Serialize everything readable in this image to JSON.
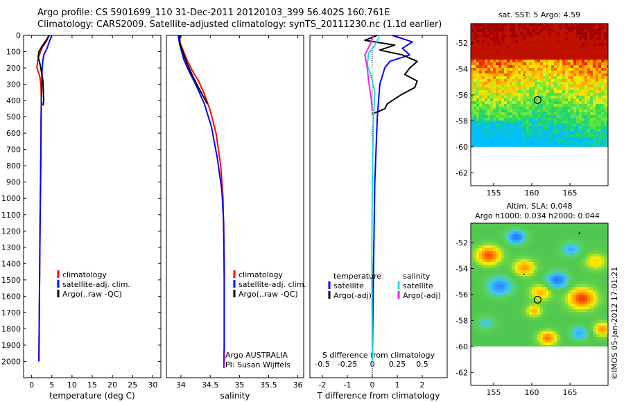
{
  "header": {
    "line1": "Argo profile: CS 5901699_110 31-Dec-2011 20120103_399 56.402S 160.761E",
    "line2": "Climatology: CARS2009. Satellite-adjusted climatology: synTS_20111230.nc (1.1d earlier)"
  },
  "credit": "©IMOS 05-Jan-2012 17:01:21",
  "colors": {
    "climatology": "#ff0000",
    "satellite": "#0000ff",
    "argo": "#000000",
    "salinity_satellite": "#22dddd",
    "salinity_argo": "#ee22ee"
  },
  "chart_data": [
    {
      "type": "line",
      "id": "temperature",
      "xlabel": "temperature (deg C)",
      "ylabel": "",
      "xlim": [
        -2,
        32
      ],
      "ylim": [
        2100,
        0
      ],
      "xticks": [
        0,
        5,
        10,
        15,
        20,
        25,
        30
      ],
      "yticks": [
        0,
        100,
        200,
        300,
        400,
        500,
        600,
        700,
        800,
        900,
        1000,
        1100,
        1200,
        1300,
        1400,
        1500,
        1600,
        1700,
        1800,
        1900,
        2000
      ],
      "legend": [
        "climatology",
        "satellite-adj. clim.",
        "Argo(..raw -QC)"
      ],
      "series": [
        {
          "name": "climatology",
          "color": "#ff0000",
          "x": [
            4.2,
            3.8,
            2.5,
            1.5,
            1.3,
            2.0,
            2.3,
            2.4,
            2.35,
            2.3,
            2.2,
            2.1,
            2.0,
            1.9,
            1.8
          ],
          "y": [
            0,
            30,
            80,
            150,
            200,
            250,
            300,
            400,
            500,
            700,
            900,
            1100,
            1400,
            1700,
            2000
          ]
        },
        {
          "name": "satellite-adj. clim.",
          "color": "#0000ff",
          "x": [
            5.0,
            4.5,
            3.8,
            3.0,
            2.8,
            2.6,
            2.5,
            2.4,
            2.35,
            2.3,
            2.2,
            2.1,
            2.0,
            1.9,
            1.8
          ],
          "y": [
            0,
            30,
            80,
            120,
            150,
            200,
            300,
            400,
            500,
            700,
            900,
            1100,
            1400,
            1700,
            2000
          ]
        },
        {
          "name": "Argo(..raw -QC)",
          "color": "#000000",
          "x": [
            4.4,
            3.6,
            2.5,
            1.8,
            1.6,
            2.1,
            2.4,
            2.8,
            2.9,
            3.0,
            2.8
          ],
          "y": [
            0,
            30,
            70,
            100,
            130,
            180,
            220,
            280,
            340,
            400,
            430
          ]
        }
      ]
    },
    {
      "type": "line",
      "id": "salinity",
      "xlabel": "salinity",
      "ylabel": "",
      "xlim": [
        33.75,
        36.1
      ],
      "ylim": [
        2100,
        0
      ],
      "xticks": [
        34,
        34.5,
        35,
        35.5,
        36
      ],
      "legend": [
        "climatology",
        "satellite-adj. clim.",
        "Argo(..raw -QC)"
      ],
      "annotations": [
        "Argo AUSTRALIA",
        "PI: Susan Wijffels"
      ],
      "series": [
        {
          "name": "climatology",
          "color": "#ff0000",
          "x": [
            33.95,
            34.0,
            34.1,
            34.2,
            34.3,
            34.4,
            34.5,
            34.6,
            34.68,
            34.72,
            34.74,
            34.74
          ],
          "y": [
            0,
            60,
            150,
            220,
            280,
            360,
            460,
            600,
            800,
            1000,
            1400,
            2000
          ]
        },
        {
          "name": "satellite-adj. clim.",
          "color": "#0000ff",
          "x": [
            33.95,
            33.98,
            34.05,
            34.15,
            34.25,
            34.4,
            34.52,
            34.62,
            34.7,
            34.73,
            34.74,
            34.74
          ],
          "y": [
            0,
            60,
            150,
            230,
            300,
            420,
            560,
            750,
            950,
            1150,
            1500,
            2000
          ]
        },
        {
          "name": "Argo(..raw -QC)",
          "color": "#000000",
          "x": [
            33.98,
            33.98,
            34.05,
            34.1,
            34.2,
            34.3,
            34.45
          ],
          "y": [
            0,
            50,
            120,
            170,
            250,
            320,
            420
          ]
        }
      ]
    },
    {
      "type": "line",
      "id": "difference",
      "xlabel": "T difference from climatology",
      "xlabel_top": "S difference from climatology",
      "xlim": [
        -2.5,
        3
      ],
      "ylim": [
        2100,
        0
      ],
      "xticks": [
        -2,
        -1,
        0,
        1,
        2
      ],
      "sticks": [
        -0.5,
        -0.25,
        0,
        0.25,
        0.5
      ],
      "legend_groups": [
        {
          "title": "temperature",
          "items": [
            "satellite",
            "Argo(-adj)"
          ]
        },
        {
          "title": "salinity",
          "items": [
            "satellite",
            "Argo(-adj)"
          ]
        }
      ],
      "series": [
        {
          "name": "temperature satellite",
          "color": "#0000ff",
          "x": [
            0.8,
            1.6,
            1.2,
            1.5,
            0.7,
            0.5,
            0.3,
            0.2,
            0.1,
            0.05,
            0.0
          ],
          "y": [
            0,
            40,
            80,
            120,
            160,
            200,
            300,
            500,
            900,
            1400,
            2000
          ]
        },
        {
          "name": "temperature Argo(-adj)",
          "color": "#000000",
          "x": [
            0.2,
            -0.3,
            0.9,
            0.3,
            1.2,
            1.8,
            1.5,
            1.3,
            1.8,
            1.7,
            1.2,
            0.6,
            0.5,
            0.2,
            0.0
          ],
          "y": [
            0,
            30,
            60,
            90,
            120,
            160,
            200,
            240,
            280,
            320,
            360,
            420,
            450,
            470,
            480
          ]
        },
        {
          "name": "salinity satellite",
          "color": "#22dddd",
          "x": [
            0.3,
            0.1,
            -0.15,
            -0.2,
            -0.05,
            0.1,
            0.05,
            0.0,
            -0.02,
            0.0
          ],
          "y": [
            0,
            60,
            110,
            180,
            250,
            350,
            500,
            900,
            1400,
            2000
          ]
        },
        {
          "name": "salinity Argo(-adj)",
          "color": "#ee22ee",
          "x": [
            0.05,
            -0.1,
            -0.3,
            -0.2,
            -0.15,
            -0.05,
            0.0
          ],
          "y": [
            0,
            60,
            120,
            200,
            280,
            380,
            460
          ]
        }
      ]
    },
    {
      "type": "heatmap",
      "id": "sst_map",
      "title": "sat. SST: 5 Argo: 4.59",
      "xlim": [
        152,
        170
      ],
      "ylim": [
        -63,
        -50.5
      ],
      "xticks": [
        155,
        160,
        165
      ],
      "yticks": [
        -52,
        -54,
        -56,
        -58,
        -60,
        -62
      ],
      "argo_position": [
        160.76,
        -56.4
      ]
    },
    {
      "type": "heatmap",
      "id": "sla_map",
      "title": "Altim. SLA: 0.048",
      "subtitle": "Argo h1000: 0.034 h2000: 0.044",
      "xlim": [
        152,
        170
      ],
      "ylim": [
        -63,
        -50.5
      ],
      "xticks": [
        155,
        160,
        165
      ],
      "yticks": [
        -52,
        -54,
        -56,
        -58,
        -60,
        -62
      ],
      "argo_position": [
        160.76,
        -56.4
      ]
    }
  ]
}
